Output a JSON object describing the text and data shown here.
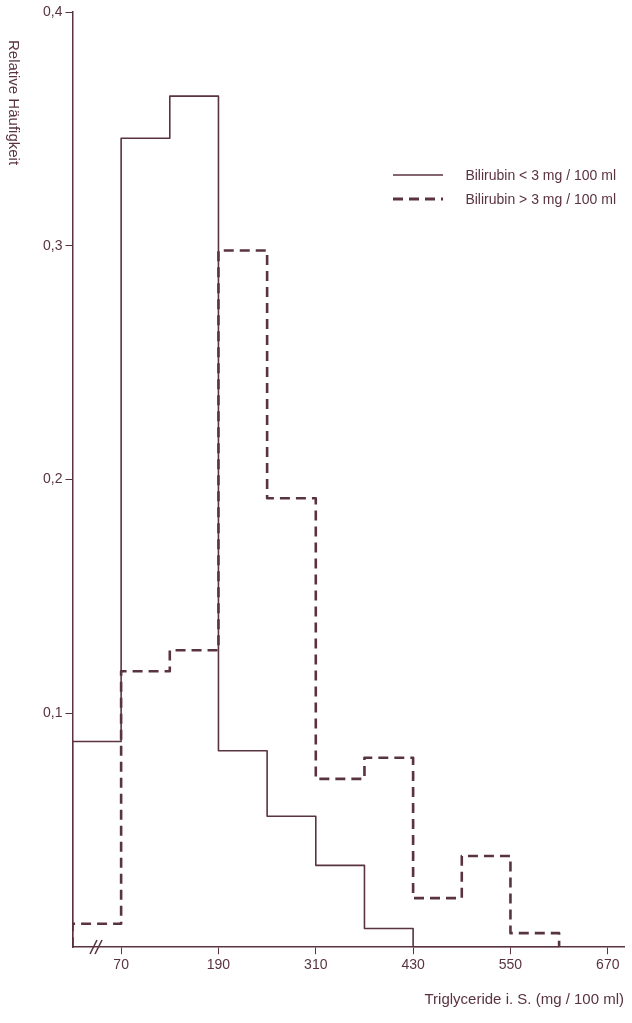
{
  "chart_data": {
    "type": "histogram",
    "xlabel": "Triglyceride i. S. (mg / 100 ml)",
    "ylabel": "Relative Häufigkeit",
    "bins": [
      10,
      70,
      130,
      190,
      250,
      310,
      370,
      430,
      490,
      550,
      610
    ],
    "series": [
      {
        "name": "Bilirubin < 3 mg / 100 ml",
        "color": "#5a3340",
        "line_style": "solid",
        "values": [
          0.088,
          0.346,
          0.364,
          0.084,
          0.056,
          0.035,
          0.008,
          0,
          0,
          0
        ]
      },
      {
        "name": "Bilirubin > 3 mg / 100 ml",
        "color": "#5a3340",
        "line_style": "dashed",
        "values": [
          0.01,
          0.118,
          0.127,
          0.298,
          0.192,
          0.072,
          0.081,
          0.021,
          0.039,
          0.006
        ]
      }
    ],
    "xlim": [
      10,
      690
    ],
    "xticks": [
      70,
      190,
      310,
      430,
      550,
      670
    ],
    "ylim": [
      0,
      0.4
    ],
    "yticks": [
      {
        "value": 0.1,
        "label": "0,1"
      },
      {
        "value": 0.2,
        "label": "0,2"
      },
      {
        "value": 0.3,
        "label": "0,3"
      },
      {
        "value": 0.4,
        "label": "0,4"
      }
    ],
    "legend": "top right"
  }
}
